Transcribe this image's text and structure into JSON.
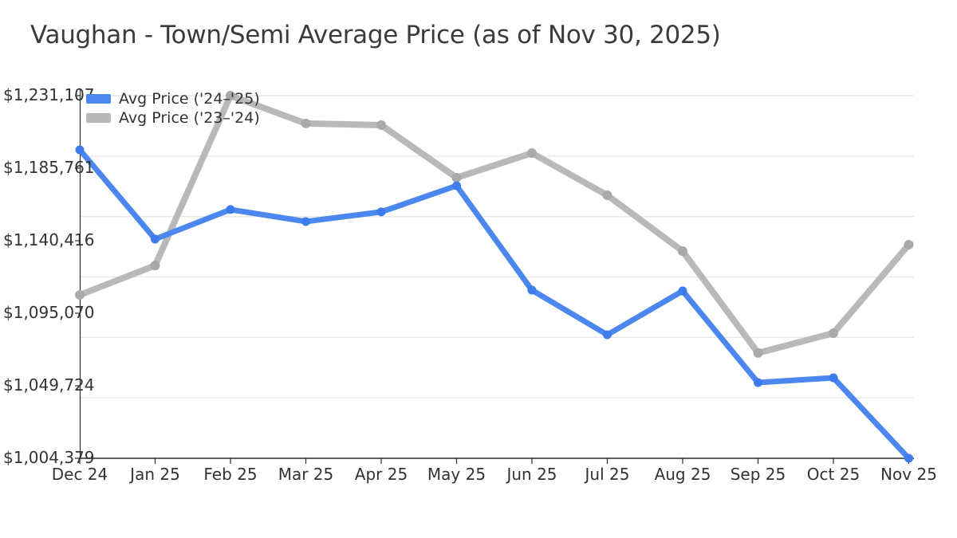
{
  "chart_data": {
    "type": "line",
    "title": "Vaughan - Town/Semi Average Price (as of Nov 30, 2025)",
    "categories": [
      "Dec 24",
      "Jan 25",
      "Feb 25",
      "Mar 25",
      "Apr 25",
      "May 25",
      "Jun 25",
      "Jul 25",
      "Aug 25",
      "Sep 25",
      "Oct 25",
      "Nov 25"
    ],
    "series": [
      {
        "name": "Avg Price ('24–'25)",
        "color": "#4b87ee",
        "marker_color": "#3e7cec",
        "values": [
          1197200,
          1141400,
          1159900,
          1152400,
          1158400,
          1174800,
          1109500,
          1081600,
          1109000,
          1051700,
          1054700,
          1004379
        ]
      },
      {
        "name": "Avg Price ('23–'24)",
        "color": "#b9b9b9",
        "marker_color": "#a9a9a9",
        "values": [
          1106500,
          1124900,
          1231107,
          1213700,
          1212700,
          1179800,
          1195200,
          1168800,
          1133900,
          1070200,
          1082600,
          1137900
        ]
      }
    ],
    "ylim": [
      1004379,
      1231107
    ],
    "y_ticks": [
      {
        "value": 1231107,
        "label": "$1,231,107"
      },
      {
        "value": 1185761,
        "label": "$1,185,761"
      },
      {
        "value": 1140416,
        "label": "$1,140,416"
      },
      {
        "value": 1095070,
        "label": "$1,095,070"
      },
      {
        "value": 1049724,
        "label": "$1,049,724"
      },
      {
        "value": 1004379,
        "label": "$1,004,379"
      }
    ],
    "xlabel": "",
    "ylabel": "",
    "grid": true,
    "gridline_count": 7,
    "legend_position": "top-left"
  },
  "colors": {
    "gridline": "#e9e9e9",
    "axis": "#2e2e2e",
    "tick_text": "#333333",
    "title_text": "#3b3b3b",
    "background": "#ffffff"
  }
}
